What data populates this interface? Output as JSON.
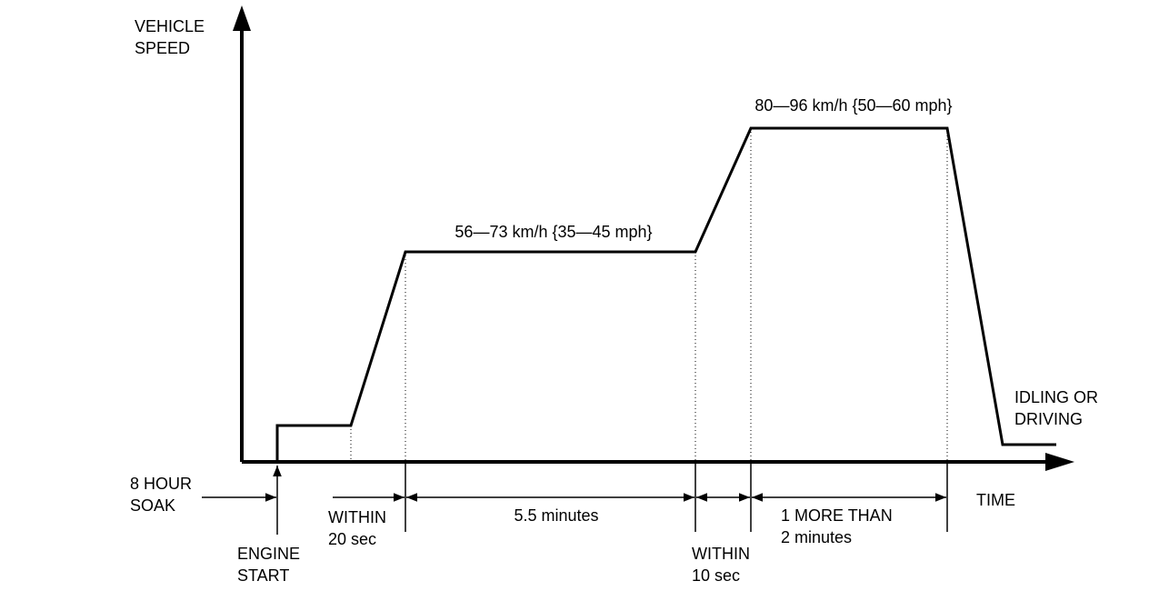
{
  "y_axis_label": [
    "VEHICLE",
    "SPEED"
  ],
  "x_axis_label": "TIME",
  "speed_labels": [
    "56—73 km/h {35—45 mph}",
    "80—96 km/h {50—60 mph}"
  ],
  "end_label": [
    "IDLING OR",
    "DRIVING"
  ],
  "soak_label": [
    "8 HOUR",
    "SOAK"
  ],
  "engine_start_label": [
    "ENGINE",
    "START"
  ],
  "intervals": [
    {
      "label": [
        "WITHIN",
        "20 sec"
      ]
    },
    {
      "label": [
        "5.5 minutes"
      ]
    },
    {
      "label": [
        "WITHIN",
        "10 sec"
      ]
    },
    {
      "label": [
        "1 MORE THAN",
        "2 minutes"
      ]
    }
  ]
}
